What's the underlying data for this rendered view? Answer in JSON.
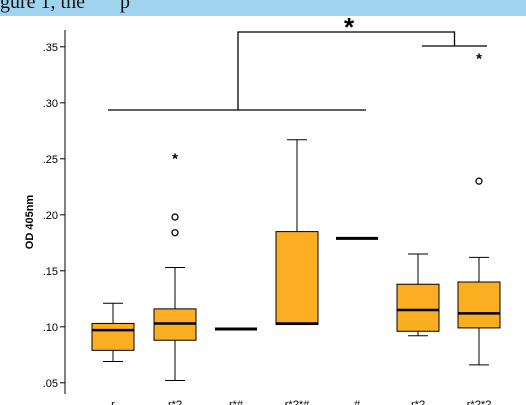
{
  "header_text": "gure 1, the       p",
  "chart_data": {
    "type": "box",
    "ylabel": "OD 405nm",
    "ylim": [
      0.04,
      0.365
    ],
    "yticks": [
      0.05,
      0.1,
      0.15,
      0.2,
      0.25,
      0.3,
      0.35
    ],
    "ytick_labels": [
      ".05",
      ".10",
      ".15",
      ".20",
      ".25",
      ".30",
      ".35"
    ],
    "box_color": "#fbae22",
    "categories": [
      "r",
      "r*?",
      "r*#",
      "r*?*#",
      "#",
      "r*?",
      "r*?*?"
    ],
    "boxes": [
      {
        "min": 0.069,
        "q1": 0.079,
        "median": 0.097,
        "q3": 0.103,
        "max": 0.121,
        "outliers_circle": [],
        "outliers_star": []
      },
      {
        "min": 0.052,
        "q1": 0.088,
        "median": 0.103,
        "q3": 0.116,
        "max": 0.153,
        "outliers_circle": [
          0.184,
          0.198
        ],
        "outliers_star": [
          0.254
        ]
      },
      {
        "min": null,
        "q1": null,
        "median": 0.098,
        "q3": null,
        "max": null,
        "outliers_circle": [],
        "outliers_star": []
      },
      {
        "min": 0.102,
        "q1": 0.102,
        "median": 0.103,
        "q3": 0.185,
        "max": 0.267,
        "outliers_circle": [],
        "outliers_star": []
      },
      {
        "min": null,
        "q1": null,
        "median": 0.179,
        "q3": null,
        "max": null,
        "outliers_circle": [],
        "outliers_star": []
      },
      {
        "min": 0.092,
        "q1": 0.096,
        "median": 0.115,
        "q3": 0.138,
        "max": 0.165,
        "outliers_circle": [],
        "outliers_star": []
      },
      {
        "min": 0.066,
        "q1": 0.099,
        "median": 0.112,
        "q3": 0.14,
        "max": 0.162,
        "outliers_circle": [
          0.23
        ],
        "outliers_star": [
          0.343
        ]
      }
    ],
    "significance": {
      "label": "*",
      "left_group_span": [
        1,
        5
      ],
      "right_group_span": [
        6,
        7
      ]
    }
  }
}
